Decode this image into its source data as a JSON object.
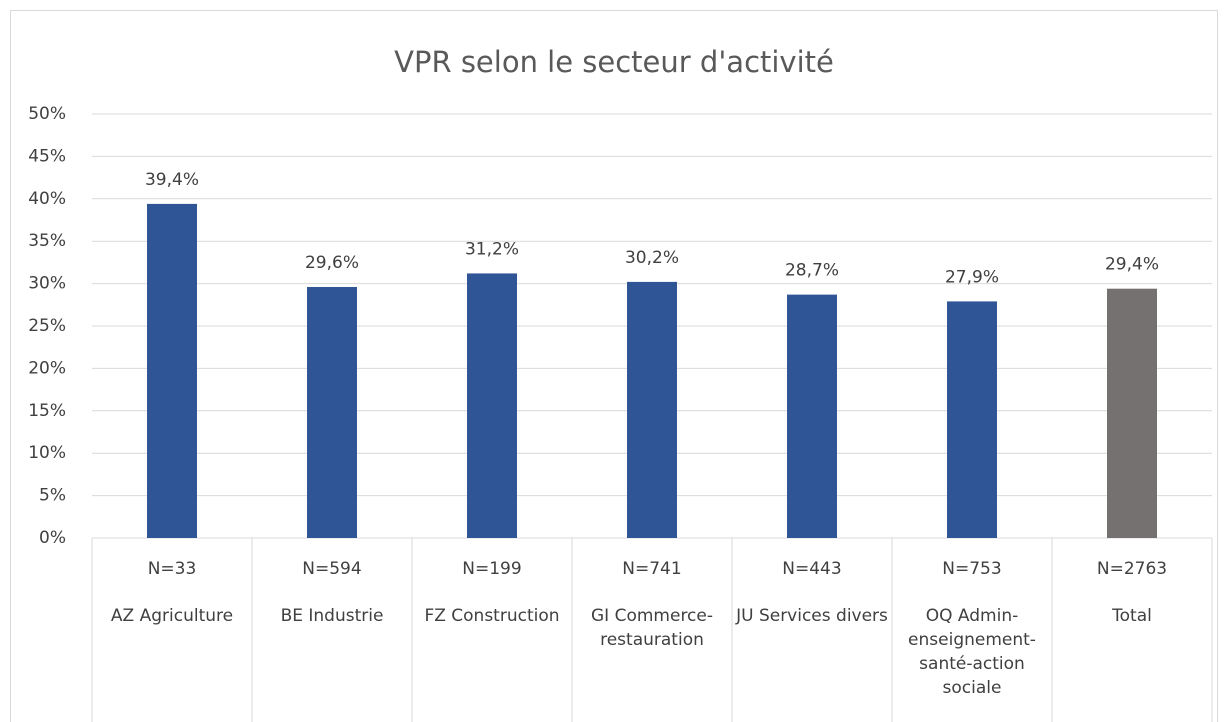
{
  "chart_data": {
    "type": "bar",
    "title": "VPR selon le secteur d'activité",
    "categories": [
      "AZ Agriculture",
      "BE Industrie",
      "FZ Construction",
      "GI Commerce-restauration",
      "JU Services divers",
      "OQ Admin-enseignement-santé-action sociale",
      "Total"
    ],
    "counts": [
      "N=33",
      "N=594",
      "N=199",
      "N=741",
      "N=443",
      "N=753",
      "N=2763"
    ],
    "values": [
      39.4,
      29.6,
      31.2,
      30.2,
      28.7,
      27.9,
      29.4
    ],
    "value_labels": [
      "39,4%",
      "29,6%",
      "31,2%",
      "30,2%",
      "28,7%",
      "27,9%",
      "29,4%"
    ],
    "colors": [
      "#2f5597",
      "#2f5597",
      "#2f5597",
      "#2f5597",
      "#2f5597",
      "#2f5597",
      "#767171"
    ],
    "ylim": [
      0,
      50
    ],
    "yticks": [
      {
        "value": 0,
        "label": "0%"
      },
      {
        "value": 5,
        "label": "5%"
      },
      {
        "value": 10,
        "label": "10%"
      },
      {
        "value": 15,
        "label": "15%"
      },
      {
        "value": 20,
        "label": "20%"
      },
      {
        "value": 25,
        "label": "25%"
      },
      {
        "value": 30,
        "label": "30%"
      },
      {
        "value": 35,
        "label": "35%"
      },
      {
        "value": 40,
        "label": "40%"
      },
      {
        "value": 45,
        "label": "45%"
      },
      {
        "value": 50,
        "label": "50%"
      }
    ],
    "grid": true
  }
}
